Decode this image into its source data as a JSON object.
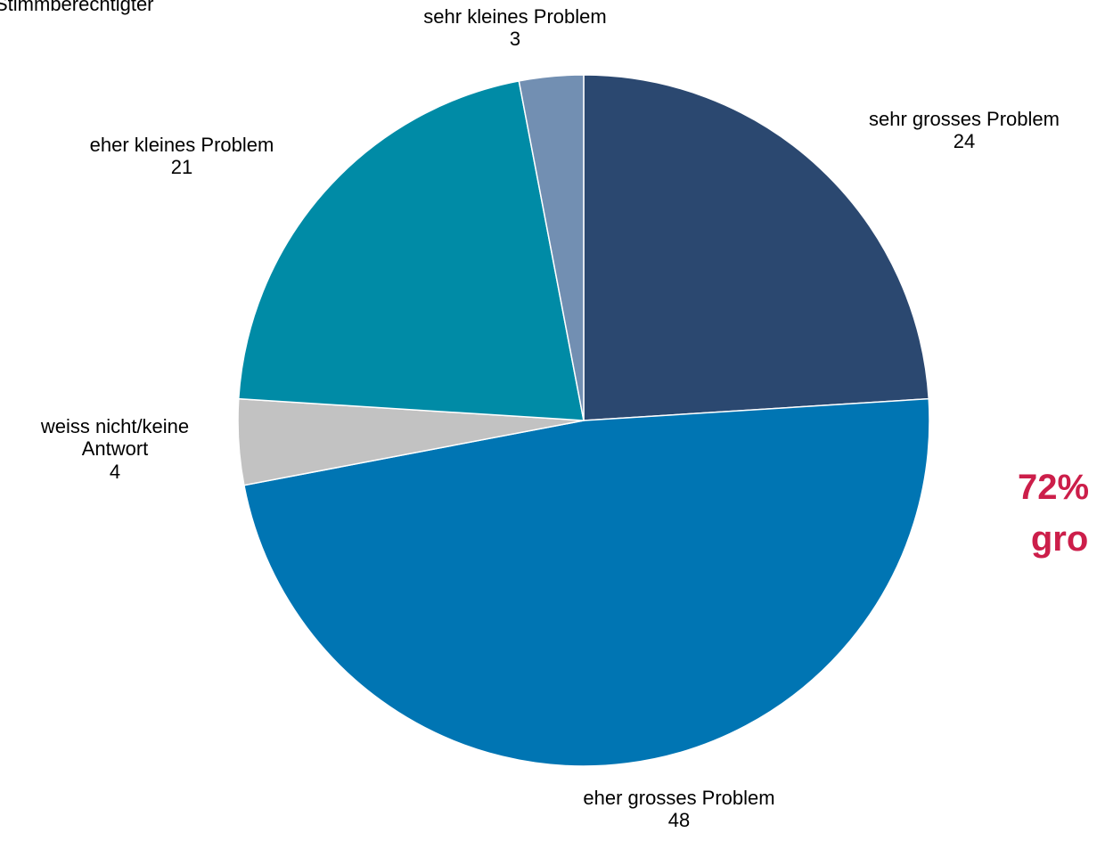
{
  "header": {
    "cut_label": "Stimmberechtigter"
  },
  "chart_data": {
    "type": "pie",
    "start_angle_deg": 0,
    "direction": "clockwise",
    "slices": [
      {
        "label": "sehr grosses Problem",
        "value": 24,
        "value_label": "24",
        "color": "#2b4870"
      },
      {
        "label": "eher grosses Problem",
        "value": 48,
        "value_label": "48",
        "color": "#0075b3"
      },
      {
        "label": "weiss nicht/keine Antwort",
        "label_lines": [
          "weiss nicht/keine",
          "Antwort"
        ],
        "value": 4,
        "value_label": "4",
        "color": "#c2c2c2"
      },
      {
        "label": "eher kleines Problem",
        "value": 21,
        "value_label": "21",
        "color": "#008ba6"
      },
      {
        "label": "sehr kleines Problem",
        "value": 3,
        "value_label": "3",
        "color": "#728fb2"
      }
    ],
    "annotation": {
      "lines": [
        "72%",
        "gro"
      ],
      "color": "#cc1e4a"
    }
  }
}
